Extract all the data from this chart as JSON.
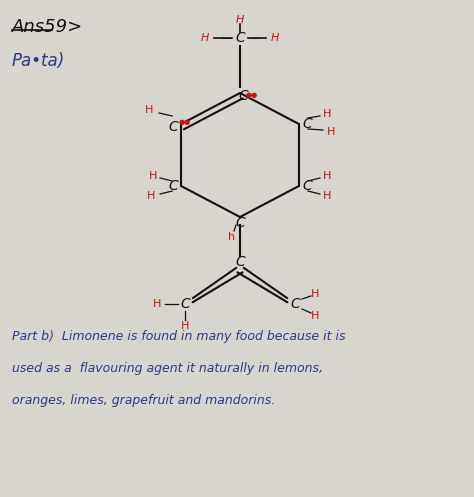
{
  "bg_color": "#d8d4ce",
  "handwriting_color": "#2a3a8a",
  "red_color": "#cc1111",
  "black_color": "#111111",
  "title": "Ans59>",
  "part_a": "Pa•ta)",
  "part_b_line1": "Part b⟩  Limonene is found in many food because it is",
  "part_b_line2": "used as a  flavouring agent it naturally in lemons,",
  "part_b_line3": "oranges, limes, grapefruit and mandorins."
}
